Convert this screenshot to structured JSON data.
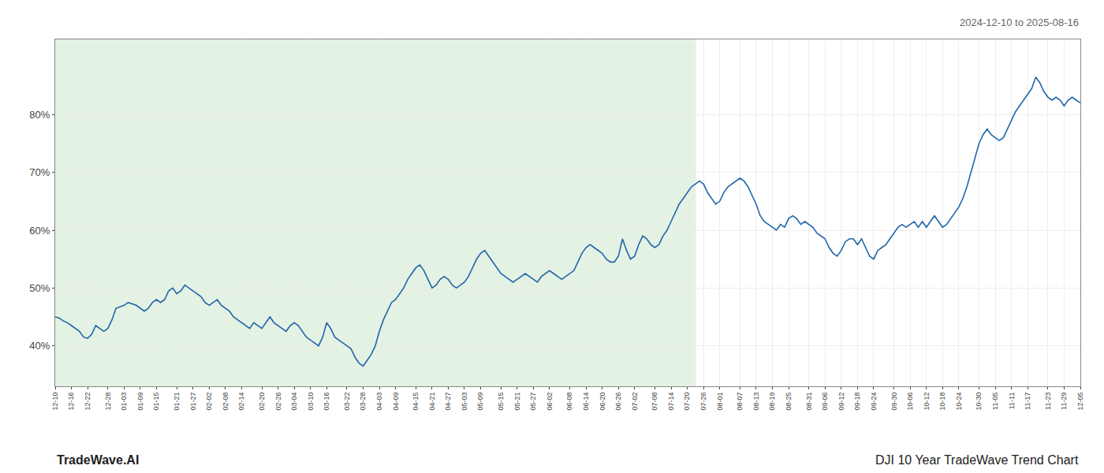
{
  "chart_data": {
    "type": "line",
    "title": "DJI 10 Year TradeWave Trend Chart",
    "subtitle": "2024-12-10 to 2025-08-16",
    "annotations": [
      "TradeWave.AI"
    ],
    "color": "#2266aa",
    "grid": true,
    "ylim": [
      33,
      93
    ],
    "yticks": [
      {
        "value": 40,
        "label": "40%"
      },
      {
        "value": 50,
        "label": "50%"
      },
      {
        "value": 60,
        "label": "60%"
      },
      {
        "value": 70,
        "label": "70%"
      },
      {
        "value": 80,
        "label": "80%"
      }
    ],
    "shaded_span": {
      "from": 0,
      "to": 158.125,
      "color": "#cce8cc"
    },
    "categories": [
      "12-10",
      null,
      null,
      null,
      "12-16",
      null,
      null,
      null,
      "12-22",
      null,
      null,
      null,
      null,
      "12-28",
      null,
      null,
      null,
      "01-03",
      null,
      null,
      null,
      "01-09",
      null,
      null,
      null,
      "01-15",
      null,
      null,
      null,
      null,
      "01-21",
      null,
      null,
      null,
      "01-27",
      null,
      null,
      null,
      "02-02",
      null,
      null,
      null,
      "02-08",
      null,
      null,
      null,
      "02-14",
      null,
      null,
      null,
      null,
      "02-20",
      null,
      null,
      null,
      "02-26",
      null,
      null,
      null,
      "03-04",
      null,
      null,
      null,
      "03-10",
      null,
      null,
      null,
      "03-16",
      null,
      null,
      null,
      null,
      "03-22",
      null,
      null,
      null,
      "03-28",
      null,
      null,
      null,
      "04-03",
      null,
      null,
      null,
      "04-09",
      null,
      null,
      null,
      null,
      "04-15",
      null,
      null,
      null,
      "04-21",
      null,
      null,
      null,
      "04-27",
      null,
      null,
      null,
      "05-03",
      null,
      null,
      null,
      "05-09",
      null,
      null,
      null,
      null,
      "05-15",
      null,
      null,
      null,
      "05-21",
      null,
      null,
      null,
      "05-27",
      null,
      null,
      null,
      "06-02",
      null,
      null,
      null,
      null,
      "06-08",
      null,
      null,
      null,
      "06-14",
      null,
      null,
      null,
      "06-20",
      null,
      null,
      null,
      "06-26",
      null,
      null,
      null,
      "07-02",
      null,
      null,
      null,
      null,
      "07-08",
      null,
      null,
      null,
      "07-14",
      null,
      null,
      null,
      "07-20",
      null,
      null,
      null,
      "07-26",
      null,
      null,
      null,
      "08-01",
      null,
      null,
      null,
      null,
      "08-07",
      null,
      null,
      null,
      "08-13",
      null,
      null,
      null,
      "08-19",
      null,
      null,
      null,
      "08-25",
      null,
      null,
      null,
      null,
      "08-31",
      null,
      null,
      null,
      "09-06",
      null,
      null,
      null,
      "09-12",
      null,
      null,
      null,
      "09-18",
      null,
      null,
      null,
      "09-24",
      null,
      null,
      null,
      null,
      "09-30",
      null,
      null,
      null,
      "10-06",
      null,
      null,
      null,
      "10-12",
      null,
      null,
      null,
      "10-18",
      null,
      null,
      null,
      "10-24",
      null,
      null,
      null,
      null,
      "10-30",
      null,
      null,
      null,
      "11-05",
      null,
      null,
      null,
      "11-11",
      null,
      null,
      null,
      "11-17",
      null,
      null,
      null,
      null,
      "11-23",
      null,
      null,
      null,
      "11-29",
      null,
      null,
      null,
      "12-05"
    ],
    "values": [
      45.0,
      44.8,
      44.3,
      44.0,
      43.5,
      43.0,
      42.5,
      41.5,
      41.3,
      42.0,
      43.5,
      43.0,
      42.5,
      43.0,
      44.5,
      46.5,
      46.8,
      47.0,
      47.5,
      47.2,
      47.0,
      46.5,
      46.0,
      46.5,
      47.5,
      48.0,
      47.5,
      48.0,
      49.5,
      50.0,
      49.0,
      49.5,
      50.5,
      50.0,
      49.5,
      49.0,
      48.5,
      47.5,
      47.0,
      47.5,
      48.0,
      47.0,
      46.5,
      46.0,
      45.0,
      44.5,
      44.0,
      43.5,
      43.0,
      44.0,
      43.5,
      43.0,
      44.0,
      45.0,
      44.0,
      43.5,
      43.0,
      42.5,
      43.5,
      44.0,
      43.5,
      42.5,
      41.5,
      41.0,
      40.5,
      40.0,
      41.5,
      44.0,
      43.0,
      41.5,
      41.0,
      40.5,
      40.0,
      39.5,
      38.0,
      37.0,
      36.5,
      37.5,
      38.5,
      40.0,
      42.5,
      44.5,
      46.0,
      47.5,
      48.0,
      49.0,
      50.0,
      51.5,
      52.5,
      53.5,
      54.0,
      53.0,
      51.5,
      50.0,
      50.5,
      51.5,
      52.0,
      51.5,
      50.5,
      50.0,
      50.5,
      51.0,
      52.0,
      53.5,
      55.0,
      56.0,
      56.5,
      55.5,
      54.5,
      53.5,
      52.5,
      52.0,
      51.5,
      51.0,
      51.5,
      52.0,
      52.5,
      52.0,
      51.5,
      51.0,
      52.0,
      52.5,
      53.0,
      52.5,
      52.0,
      51.5,
      52.0,
      52.5,
      53.0,
      54.5,
      56.0,
      57.0,
      57.5,
      57.0,
      56.5,
      56.0,
      55.0,
      54.5,
      54.5,
      55.5,
      58.5,
      56.5,
      55.0,
      55.5,
      57.5,
      59.0,
      58.5,
      57.5,
      57.0,
      57.5,
      59.0,
      60.0,
      61.5,
      63.0,
      64.5,
      65.5,
      66.5,
      67.5,
      68.0,
      68.5,
      68.0,
      66.5,
      65.5,
      64.5,
      65.0,
      66.5,
      67.5,
      68.0,
      68.5,
      69.0,
      68.5,
      67.5,
      66.0,
      64.5,
      62.5,
      61.5,
      61.0,
      60.5,
      60.0,
      61.0,
      60.5,
      62.0,
      62.5,
      62.0,
      61.0,
      61.5,
      61.0,
      60.5,
      59.5,
      59.0,
      58.5,
      57.0,
      56.0,
      55.5,
      56.5,
      58.0,
      58.5,
      58.5,
      57.5,
      58.5,
      57.0,
      55.5,
      55.0,
      56.5,
      57.0,
      57.5,
      58.5,
      59.5,
      60.5,
      61.0,
      60.5,
      61.0,
      61.5,
      60.5,
      61.5,
      60.5,
      61.5,
      62.5,
      61.5,
      60.5,
      61.0,
      62.0,
      63.0,
      64.0,
      65.5,
      67.5,
      70.0,
      72.5,
      75.0,
      76.5,
      77.5,
      76.5,
      76.0,
      75.5,
      76.0,
      77.5,
      79.0,
      80.5,
      81.5,
      82.5,
      83.5,
      84.5,
      86.5,
      85.5,
      84.0,
      83.0,
      82.5,
      83.0,
      82.5,
      81.5,
      82.5,
      83.0,
      82.5,
      82.0
    ]
  }
}
